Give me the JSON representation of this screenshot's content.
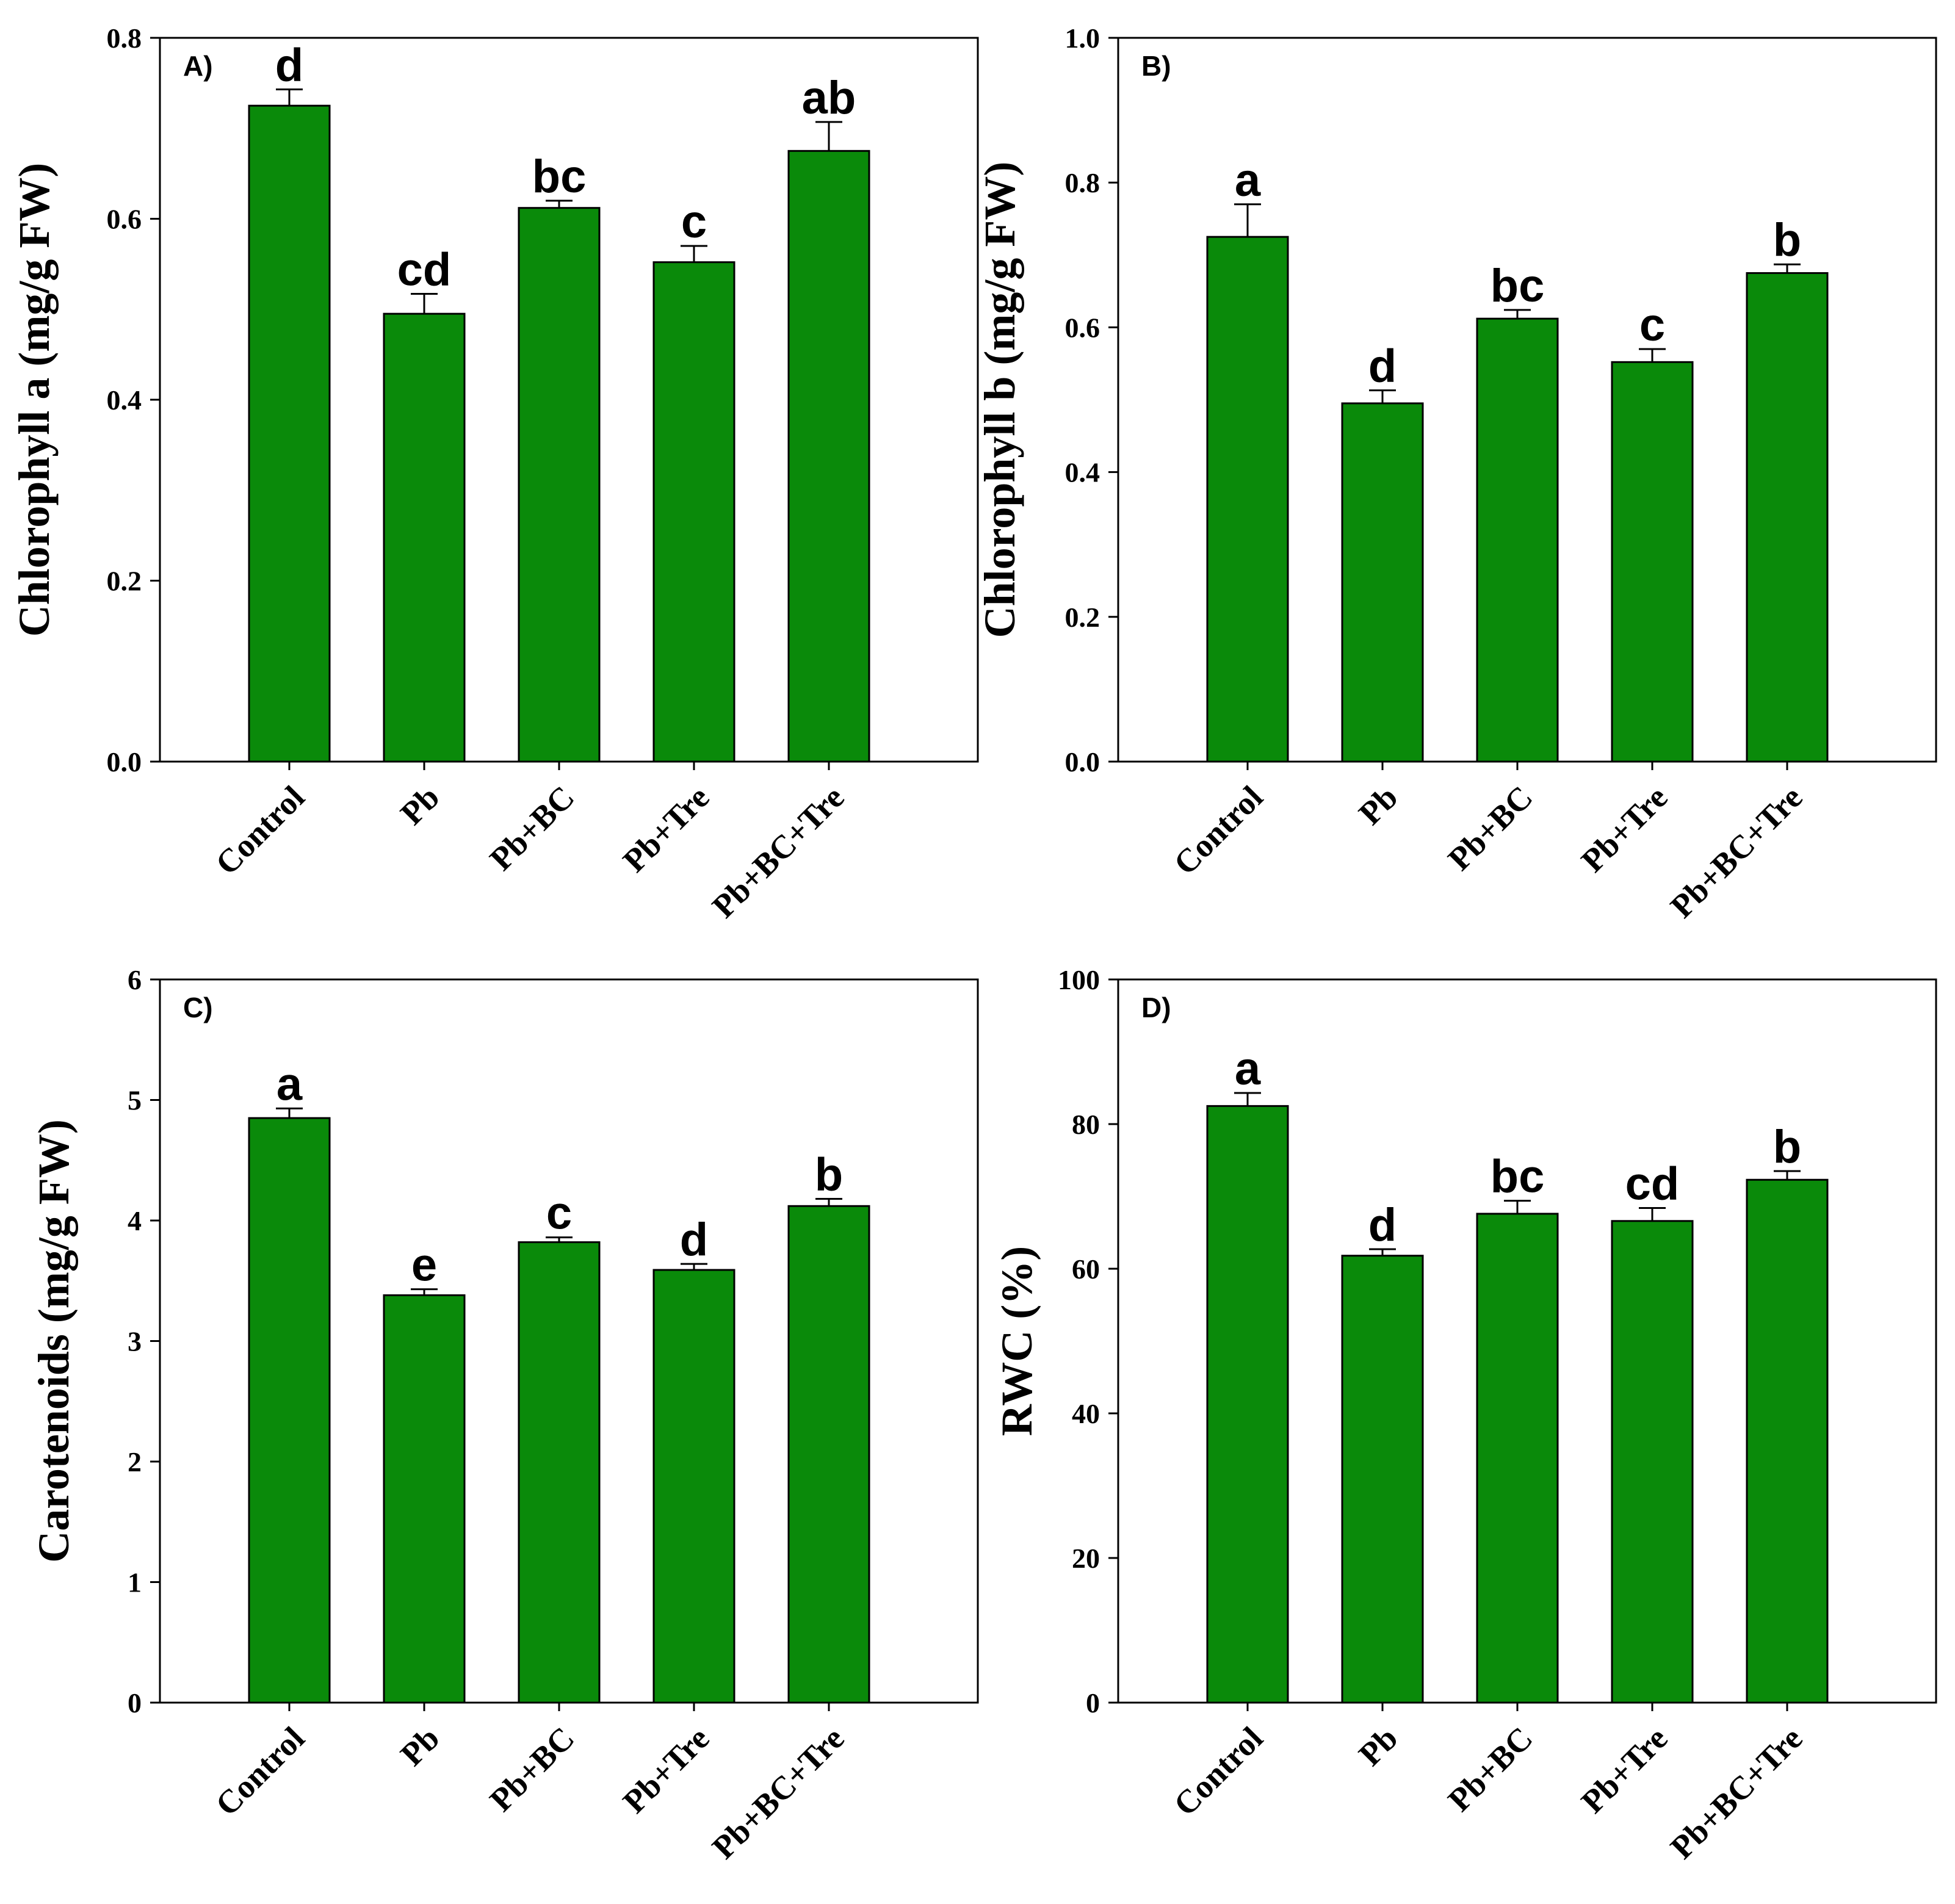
{
  "colors": {
    "bar_fill": "#0a8a0a",
    "bar_stroke": "#000000",
    "axis": "#000000"
  },
  "chart_data": [
    {
      "type": "bar",
      "panel_label": "A)",
      "categories": [
        "Control",
        "Pb",
        "Pb+BC",
        "Pb+Tre",
        "Pb+BC+Tre"
      ],
      "values": [
        0.725,
        0.495,
        0.612,
        0.552,
        0.675
      ],
      "errors": [
        0.018,
        0.022,
        0.008,
        0.018,
        0.032
      ],
      "letters": [
        "d",
        "cd",
        "bc",
        "c",
        "ab"
      ],
      "ylabel": "Chlorophyll a (mg/g FW)",
      "xlabel": "",
      "ylim": [
        0,
        0.8
      ],
      "yticks": [
        "0.0",
        "0.2",
        "0.4",
        "0.6",
        "0.8"
      ],
      "ytick_values": [
        0,
        0.2,
        0.4,
        0.6,
        0.8
      ]
    },
    {
      "type": "bar",
      "panel_label": "B)",
      "categories": [
        "Control",
        "Pb",
        "Pb+BC",
        "Pb+Tre",
        "Pb+BC+Tre"
      ],
      "values": [
        0.725,
        0.495,
        0.612,
        0.552,
        0.675
      ],
      "errors": [
        0.045,
        0.018,
        0.012,
        0.018,
        0.012
      ],
      "letters": [
        "a",
        "d",
        "bc",
        "c",
        "b"
      ],
      "ylabel": "Chlorophyll b (mg/g FW)",
      "xlabel": "",
      "ylim": [
        0,
        1.0
      ],
      "yticks": [
        "0.0",
        "0.2",
        "0.4",
        "0.6",
        "0.8",
        "1.0"
      ],
      "ytick_values": [
        0,
        0.2,
        0.4,
        0.6,
        0.8,
        1.0
      ]
    },
    {
      "type": "bar",
      "panel_label": "C)",
      "categories": [
        "Control",
        "Pb",
        "Pb+BC",
        "Pb+Tre",
        "Pb+BC+Tre"
      ],
      "values": [
        4.85,
        3.38,
        3.82,
        3.59,
        4.12
      ],
      "errors": [
        0.08,
        0.05,
        0.04,
        0.05,
        0.06
      ],
      "letters": [
        "a",
        "e",
        "c",
        "d",
        "b"
      ],
      "ylabel": "Carotenoids (mg/g FW)",
      "xlabel": "",
      "ylim": [
        0,
        6
      ],
      "yticks": [
        "0",
        "1",
        "2",
        "3",
        "4",
        "5",
        "6"
      ],
      "ytick_values": [
        0,
        1,
        2,
        3,
        4,
        5,
        6
      ]
    },
    {
      "type": "bar",
      "panel_label": "D)",
      "categories": [
        "Control",
        "Pb",
        "Pb+BC",
        "Pb+Tre",
        "Pb+BC+Tre"
      ],
      "values": [
        82.5,
        61.8,
        67.6,
        66.6,
        72.3
      ],
      "errors": [
        1.8,
        0.9,
        1.8,
        1.8,
        1.2
      ],
      "letters": [
        "a",
        "d",
        "bc",
        "cd",
        "b"
      ],
      "ylabel": "RWC (%)",
      "xlabel": "",
      "ylim": [
        0,
        100
      ],
      "yticks": [
        "0",
        "20",
        "40",
        "60",
        "80",
        "100"
      ],
      "ytick_values": [
        0,
        20,
        40,
        60,
        80,
        100
      ]
    }
  ]
}
